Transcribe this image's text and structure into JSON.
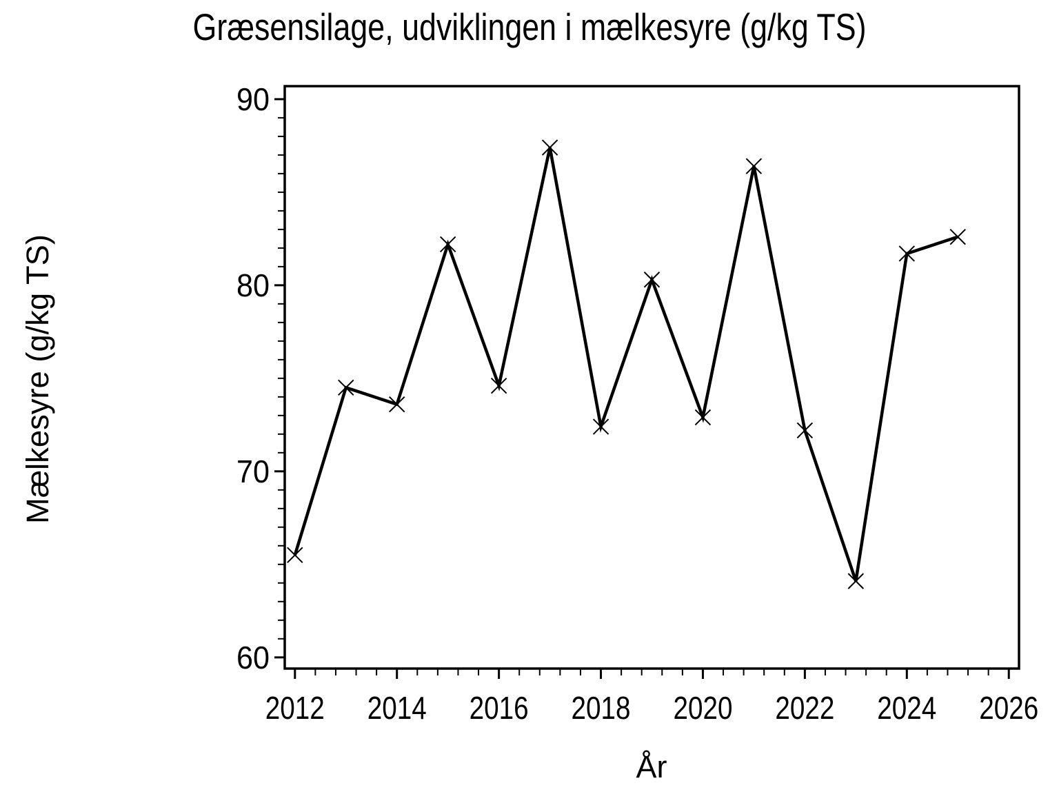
{
  "title": "Græsensilage, udviklingen i mælkesyre (g/kg TS)",
  "chart_data": {
    "type": "line",
    "title": "Græsensilage, udviklingen i mælkesyre (g/kg TS)",
    "xlabel": "År",
    "ylabel": "Mælkesyre (g/kg TS)",
    "x": [
      2012,
      2013,
      2014,
      2015,
      2016,
      2017,
      2018,
      2019,
      2020,
      2021,
      2022,
      2023,
      2024,
      2025
    ],
    "values": [
      65.5,
      74.5,
      73.6,
      82.2,
      74.6,
      87.4,
      72.4,
      80.3,
      72.9,
      86.4,
      72.2,
      64.1,
      81.7,
      82.6
    ],
    "series": [
      {
        "name": "Mælkesyre (g/kg TS)",
        "values": [
          65.5,
          74.5,
          73.6,
          82.2,
          74.6,
          87.4,
          72.4,
          80.3,
          72.9,
          86.4,
          72.2,
          64.1,
          81.7,
          82.6
        ]
      }
    ],
    "xlim": [
      2011.8,
      2026.2
    ],
    "ylim": [
      59.4,
      90.7
    ],
    "xticks": [
      2012,
      2014,
      2016,
      2018,
      2020,
      2022,
      2024,
      2026
    ],
    "yticks": [
      60,
      70,
      80,
      90
    ],
    "x_minor_interval": 0.4,
    "y_minor_interval": 1,
    "marker": "x",
    "line_color": "#000000",
    "frame_color": "#000000",
    "background_color": "#FFFFFF",
    "grid": false,
    "legend": "none"
  }
}
